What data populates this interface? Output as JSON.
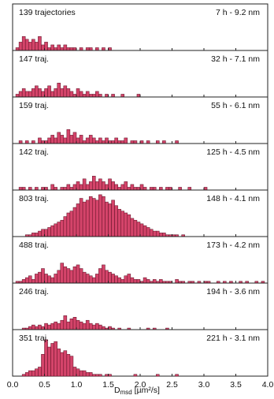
{
  "bar_fill": "#d4446a",
  "bar_stroke": "#5a0f22",
  "chart_data": {
    "type": "bar",
    "xlabel": "D",
    "xlabel_sub": "msd",
    "xlabel_unit": " [µm²/s]",
    "xlim": [
      0,
      4.0
    ],
    "bin_width": 0.05,
    "x_ticks": [
      "0.0",
      "0.5",
      "1.0",
      "1.5",
      "2.0",
      "2.5",
      "3.0",
      "3.5",
      "4.0"
    ],
    "panels": [
      {
        "count_label": "139 trajectories",
        "condition_label": "7 h - 9.2 nm",
        "values": [
          0,
          1,
          3,
          5,
          4,
          3,
          4,
          3,
          5,
          2,
          3,
          1,
          2,
          1,
          2,
          1,
          2,
          1,
          1,
          1,
          0,
          1,
          0,
          1,
          1,
          0,
          1,
          0,
          1,
          0,
          1,
          0,
          0,
          0,
          0,
          0,
          0,
          0,
          0,
          0,
          0,
          0,
          0,
          0,
          0,
          0,
          0,
          0,
          0,
          0,
          0,
          0,
          0,
          0,
          0,
          0,
          0,
          0,
          0,
          0,
          0,
          0,
          0,
          0,
          0,
          0,
          0,
          0,
          0,
          0,
          0,
          0,
          0,
          0,
          0,
          0,
          0,
          0,
          0,
          0
        ]
      },
      {
        "count_label": "147 traj.",
        "condition_label": "32 h - 7.1 nm",
        "values": [
          0,
          1,
          2,
          3,
          2,
          2,
          3,
          4,
          3,
          2,
          3,
          4,
          2,
          3,
          5,
          3,
          4,
          3,
          2,
          1,
          3,
          2,
          1,
          2,
          1,
          1,
          2,
          1,
          0,
          1,
          0,
          1,
          0,
          0,
          1,
          0,
          0,
          0,
          0,
          1,
          0,
          0,
          0,
          0,
          0,
          0,
          0,
          0,
          0,
          0,
          0,
          0,
          0,
          0,
          0,
          0,
          0,
          0,
          0,
          0,
          0,
          0,
          0,
          0,
          0,
          0,
          0,
          0,
          0,
          0,
          0,
          0,
          0,
          0,
          0,
          0,
          0,
          0,
          0,
          0
        ]
      },
      {
        "count_label": "159 traj.",
        "condition_label": "55 h - 6.1 nm",
        "values": [
          0,
          0,
          1,
          0,
          1,
          0,
          1,
          0,
          2,
          1,
          1,
          2,
          3,
          2,
          4,
          3,
          2,
          5,
          3,
          4,
          2,
          3,
          1,
          2,
          3,
          2,
          1,
          2,
          1,
          2,
          1,
          1,
          2,
          1,
          1,
          2,
          0,
          1,
          1,
          0,
          1,
          0,
          1,
          0,
          0,
          1,
          0,
          1,
          0,
          0,
          0,
          1,
          0,
          0,
          0,
          0,
          0,
          0,
          0,
          0,
          0,
          0,
          0,
          0,
          0,
          0,
          0,
          0,
          0,
          0,
          0,
          0,
          0,
          0,
          0,
          0,
          0,
          0,
          0,
          0
        ]
      },
      {
        "count_label": "142 traj.",
        "condition_label": "125 h - 4.5 nm",
        "values": [
          0,
          0,
          1,
          1,
          0,
          1,
          0,
          1,
          0,
          1,
          1,
          0,
          2,
          1,
          0,
          1,
          1,
          2,
          1,
          2,
          3,
          2,
          4,
          2,
          3,
          5,
          3,
          4,
          3,
          2,
          4,
          3,
          2,
          1,
          2,
          3,
          1,
          2,
          1,
          1,
          2,
          1,
          0,
          1,
          1,
          0,
          1,
          0,
          1,
          1,
          0,
          0,
          1,
          0,
          0,
          1,
          0,
          0,
          0,
          0,
          1,
          0,
          0,
          0,
          0,
          0,
          0,
          0,
          0,
          0,
          0,
          0,
          0,
          0,
          0,
          0,
          0,
          0,
          0,
          0
        ]
      },
      {
        "count_label": "803 traj.",
        "condition_label": "148 h - 4.1 nm",
        "values": [
          0,
          0,
          0,
          0,
          1,
          1,
          2,
          2,
          3,
          4,
          4,
          5,
          6,
          7,
          8,
          9,
          11,
          13,
          14,
          16,
          18,
          21,
          19,
          20,
          22,
          21,
          20,
          23,
          22,
          19,
          18,
          20,
          17,
          15,
          14,
          13,
          12,
          10,
          9,
          8,
          7,
          6,
          5,
          4,
          3,
          3,
          2,
          2,
          1,
          1,
          1,
          1,
          0,
          1,
          0,
          0,
          0,
          0,
          0,
          0,
          0,
          0,
          0,
          0,
          0,
          0,
          0,
          0,
          0,
          0,
          0,
          0,
          0,
          0,
          0,
          0,
          0,
          0,
          0,
          0
        ]
      },
      {
        "count_label": "488 traj.",
        "condition_label": "173 h - 4.2 nm",
        "values": [
          0,
          1,
          1,
          2,
          3,
          4,
          2,
          5,
          6,
          8,
          5,
          4,
          3,
          5,
          7,
          11,
          9,
          8,
          7,
          9,
          10,
          8,
          6,
          5,
          4,
          3,
          5,
          8,
          10,
          7,
          6,
          5,
          4,
          3,
          2,
          4,
          5,
          3,
          2,
          2,
          1,
          3,
          2,
          1,
          2,
          1,
          2,
          1,
          1,
          1,
          0,
          2,
          1,
          1,
          0,
          1,
          1,
          0,
          1,
          0,
          1,
          1,
          0,
          0,
          1,
          0,
          1,
          0,
          1,
          0,
          0,
          1,
          0,
          1,
          0,
          0,
          1,
          0,
          1,
          0
        ]
      },
      {
        "count_label": "246 traj.",
        "condition_label": "194 h - 3.6 nm",
        "values": [
          0,
          0,
          0,
          1,
          1,
          2,
          3,
          2,
          3,
          2,
          4,
          3,
          4,
          5,
          4,
          6,
          9,
          5,
          7,
          8,
          6,
          5,
          4,
          6,
          4,
          3,
          4,
          3,
          2,
          1,
          2,
          1,
          0,
          1,
          0,
          0,
          1,
          0,
          0,
          0,
          0,
          0,
          1,
          0,
          1,
          0,
          0,
          0,
          1,
          0,
          0,
          0,
          0,
          0,
          0,
          0,
          0,
          0,
          0,
          0,
          0,
          0,
          0,
          0,
          0,
          0,
          0,
          0,
          0,
          0,
          0,
          0,
          0,
          0,
          0,
          0,
          0,
          0,
          0,
          0
        ]
      },
      {
        "count_label": "351 traj.",
        "condition_label": "221 h - 3.1 nm",
        "values": [
          0,
          0,
          0,
          1,
          2,
          3,
          3,
          4,
          5,
          12,
          20,
          16,
          18,
          19,
          15,
          13,
          14,
          12,
          11,
          5,
          4,
          3,
          3,
          2,
          2,
          1,
          1,
          1,
          0,
          1,
          1,
          0,
          0,
          0,
          0,
          0,
          0,
          0,
          1,
          0,
          0,
          0,
          0,
          0,
          0,
          1,
          0,
          0,
          0,
          0,
          0,
          1,
          0,
          0,
          0,
          0,
          0,
          0,
          0,
          0,
          0,
          0,
          0,
          0,
          0,
          0,
          0,
          0,
          0,
          0,
          0,
          0,
          0,
          0,
          0,
          0,
          0,
          0,
          0,
          0
        ]
      }
    ]
  }
}
